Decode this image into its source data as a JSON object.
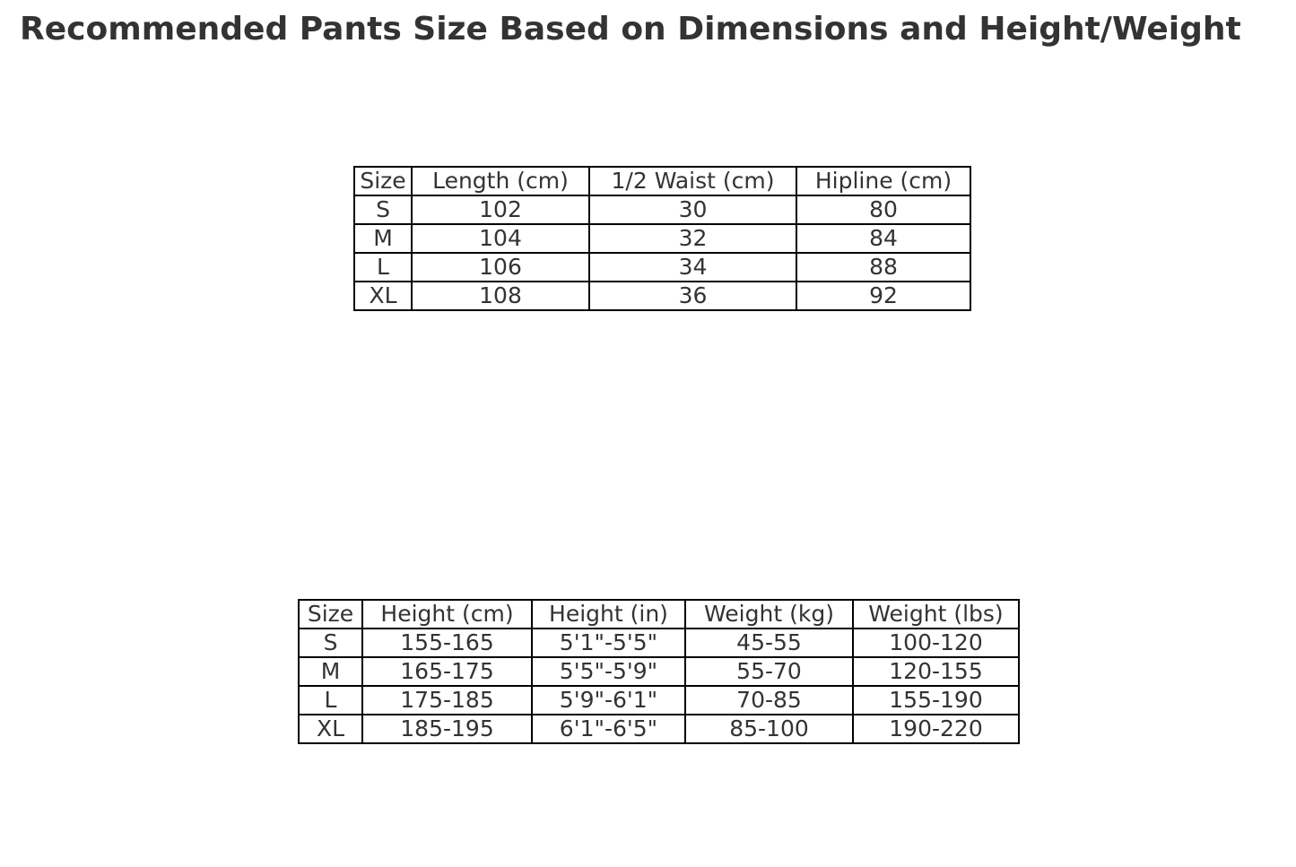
{
  "title": "Recommended Pants Size Based on Dimensions and Height/Weight",
  "colors": {
    "background": "#ffffff",
    "title_text": "#333333",
    "table_text": "#333333",
    "table_border": "#000000"
  },
  "chart_data": [
    {
      "type": "table",
      "name": "pants-dimensions",
      "headers": [
        "Size",
        "Length (cm)",
        "1/2 Waist (cm)",
        "Hipline (cm)"
      ],
      "rows": [
        [
          "S",
          "102",
          "30",
          "80"
        ],
        [
          "M",
          "104",
          "32",
          "84"
        ],
        [
          "L",
          "106",
          "34",
          "88"
        ],
        [
          "XL",
          "108",
          "36",
          "92"
        ]
      ]
    },
    {
      "type": "table",
      "name": "height-weight-recommendations",
      "headers": [
        "Size",
        "Height (cm)",
        "Height (in)",
        "Weight (kg)",
        "Weight (lbs)"
      ],
      "rows": [
        [
          "S",
          "155-165",
          "5'1\"-5'5\"",
          "45-55",
          "100-120"
        ],
        [
          "M",
          "165-175",
          "5'5\"-5'9\"",
          "55-70",
          "120-155"
        ],
        [
          "L",
          "175-185",
          "5'9\"-6'1\"",
          "70-85",
          "155-190"
        ],
        [
          "XL",
          "185-195",
          "6'1\"-6'5\"",
          "85-100",
          "190-220"
        ]
      ]
    }
  ]
}
